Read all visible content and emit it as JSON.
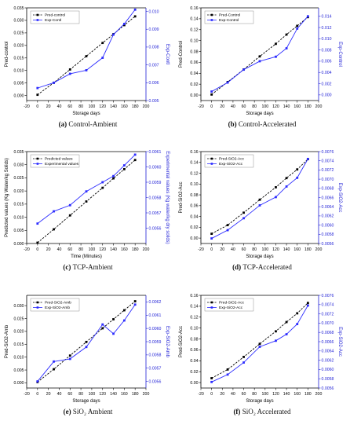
{
  "figure": {
    "captions": [
      [
        "(a) ",
        "Control-Ambient"
      ],
      [
        "(b) ",
        "Control-Accelerated"
      ],
      [
        "(c) ",
        "TCP-Ambient"
      ],
      [
        "(d) ",
        "TCP-Accelerated"
      ],
      [
        "(e) ",
        "SiO₂ Ambient"
      ],
      [
        "(f) ",
        "SiO₂ Accelerated"
      ]
    ]
  },
  "colors": {
    "pred": "#000000",
    "exp": "#2b2bff",
    "axis_right": "#1f1fd6"
  },
  "chart_data": [
    {
      "type": "line",
      "xlabel": "Storage days",
      "ylabel": "Pred-control",
      "y2label": "Exp-Contl",
      "xlim": [
        -20,
        200
      ],
      "xticks": [
        -20,
        0,
        20,
        40,
        60,
        80,
        100,
        120,
        140,
        160,
        180,
        200
      ],
      "ylim": [
        -0.002,
        0.035
      ],
      "yticks": [
        "0.000",
        "0.005",
        "0.010",
        "0.015",
        "0.020",
        "0.025",
        "0.030",
        "0.035"
      ],
      "y2lim": [
        0.005,
        0.0102
      ],
      "y2ticks": [
        "0.005",
        "0.006",
        "0.007",
        "0.008",
        "0.009",
        "0.010"
      ],
      "legend": [
        "Pred-control",
        "Exp-Contl"
      ],
      "legend_position": "top-left",
      "x": [
        0,
        30,
        60,
        90,
        120,
        140,
        160,
        180
      ],
      "series": [
        {
          "name": "Pred-control",
          "axis": "left",
          "marker": "square",
          "values": [
            0.0003,
            0.0051,
            0.0104,
            0.0157,
            0.021,
            0.0245,
            0.0281,
            0.0316
          ]
        },
        {
          "name": "Exp-Contl",
          "axis": "right",
          "marker": "square",
          "values": [
            0.0057,
            0.006,
            0.0065,
            0.0067,
            0.0074,
            0.0087,
            0.0093,
            0.0101
          ]
        }
      ]
    },
    {
      "type": "line",
      "xlabel": "Storage days",
      "ylabel": "Pred-Control",
      "y2label": "Exp-Control",
      "xlim": [
        -20,
        200
      ],
      "xticks": [
        -20,
        0,
        20,
        40,
        60,
        80,
        100,
        120,
        140,
        160,
        180,
        200
      ],
      "ylim": [
        -0.01,
        0.16
      ],
      "yticks": [
        "0.00",
        "0.02",
        "0.04",
        "0.06",
        "0.08",
        "0.10",
        "0.12",
        "0.14",
        "0.16"
      ],
      "y2lim": [
        -0.001,
        0.0155
      ],
      "y2ticks": [
        "0.000",
        "0.002",
        "0.004",
        "0.006",
        "0.008",
        "0.010",
        "0.012",
        "0.014"
      ],
      "legend": [
        "Pred-Control",
        "Exp-Control"
      ],
      "legend_position": "top-left",
      "x": [
        0,
        30,
        60,
        90,
        120,
        140,
        160,
        180
      ],
      "series": [
        {
          "name": "Pred-Control",
          "axis": "left",
          "marker": "square",
          "values": [
            0.001,
            0.024,
            0.047,
            0.071,
            0.094,
            0.111,
            0.127,
            0.143
          ]
        },
        {
          "name": "Exp-Control",
          "axis": "right",
          "marker": "square",
          "values": [
            0.0006,
            0.0022,
            0.0045,
            0.006,
            0.0068,
            0.0083,
            0.0118,
            0.014
          ]
        }
      ]
    },
    {
      "type": "line",
      "xlabel": "Time (Minutes)",
      "ylabel": "Predicted values (Kg Water/kg Solids)",
      "y2label": "Experimental values (Kg water/kg dry solids)",
      "xlim": [
        -20,
        200
      ],
      "xticks": [
        -20,
        0,
        20,
        40,
        60,
        80,
        100,
        120,
        140,
        160,
        180,
        200
      ],
      "ylim": [
        0.0,
        0.035
      ],
      "yticks": [
        "0.000",
        "0.005",
        "0.010",
        "0.015",
        "0.020",
        "0.025",
        "0.030",
        "0.035"
      ],
      "y2lim": [
        0.0055,
        0.0061
      ],
      "y2ticks": [
        "0.0056",
        "0.0057",
        "0.0058",
        "0.0059",
        "0.0060",
        "0.0061"
      ],
      "legend": [
        "Predicted values",
        "Experimental values"
      ],
      "legend_position": "top-left",
      "x": [
        0,
        30,
        60,
        90,
        120,
        140,
        160,
        180
      ],
      "series": [
        {
          "name": "Predicted values",
          "axis": "left",
          "marker": "square",
          "values": [
            0.0003,
            0.0054,
            0.0107,
            0.016,
            0.0212,
            0.0248,
            0.0283,
            0.0318
          ]
        },
        {
          "name": "Experimental values",
          "axis": "right",
          "marker": "square",
          "values": [
            0.00563,
            0.00571,
            0.00575,
            0.00584,
            0.0059,
            0.00594,
            0.00601,
            0.00608
          ]
        }
      ]
    },
    {
      "type": "line",
      "xlabel": "Storage days",
      "ylabel": "Pred-SiO2-Acc",
      "y2label": "Exp-SiO2-Acc",
      "xlim": [
        -20,
        200
      ],
      "xticks": [
        -20,
        0,
        20,
        40,
        60,
        80,
        100,
        120,
        140,
        160,
        180,
        200
      ],
      "ylim": [
        -0.01,
        0.16
      ],
      "yticks": [
        "0.00",
        "0.02",
        "0.04",
        "0.06",
        "0.08",
        "0.10",
        "0.12",
        "0.14",
        "0.16"
      ],
      "y2lim": [
        0.0056,
        0.0076
      ],
      "y2ticks": [
        "0.0056",
        "0.0058",
        "0.0060",
        "0.0062",
        "0.0064",
        "0.0066",
        "0.0068",
        "0.0070",
        "0.0072",
        "0.0074",
        "0.0076"
      ],
      "legend": [
        "Pred-SiO2-Acc",
        "Exp-SiO2-Acc"
      ],
      "legend_position": "top-left",
      "x": [
        0,
        30,
        60,
        90,
        120,
        140,
        160,
        180
      ],
      "series": [
        {
          "name": "Pred-SiO2-Acc",
          "axis": "left",
          "marker": "square",
          "values": [
            0.008,
            0.024,
            0.047,
            0.071,
            0.094,
            0.111,
            0.127,
            0.146
          ]
        },
        {
          "name": "Exp-SiO2-Acc",
          "axis": "right",
          "marker": "square",
          "values": [
            0.00571,
            0.00589,
            0.00615,
            0.00643,
            0.00661,
            0.00684,
            0.00703,
            0.00744
          ]
        }
      ]
    },
    {
      "type": "line",
      "xlabel": "Storage days",
      "ylabel": "Pred-SiO2-Amb",
      "y2label": "Exp-SiO2-Amb",
      "xlim": [
        -20,
        200
      ],
      "xticks": [
        -20,
        0,
        20,
        40,
        60,
        80,
        100,
        120,
        140,
        160,
        180,
        200
      ],
      "ylim": [
        -0.002,
        0.034
      ],
      "yticks": [
        "0.000",
        "0.005",
        "0.010",
        "0.015",
        "0.020",
        "0.025",
        "0.030"
      ],
      "y2lim": [
        0.00555,
        0.00625
      ],
      "y2ticks": [
        "0.0056",
        "0.0057",
        "0.0058",
        "0.0059",
        "0.0060",
        "0.0061",
        "0.0062"
      ],
      "legend": [
        "Pred-SiO2-Amb",
        "Exp-SiO2-Amb"
      ],
      "legend_position": "top-left",
      "x": [
        0,
        30,
        60,
        90,
        120,
        140,
        160,
        180
      ],
      "series": [
        {
          "name": "Pred-SiO2-Amb",
          "axis": "left",
          "marker": "square",
          "values": [
            0.0003,
            0.0053,
            0.0106,
            0.0159,
            0.0212,
            0.0247,
            0.0282,
            0.0317
          ]
        },
        {
          "name": "Exp-SiO2-Amb",
          "axis": "right",
          "marker": "square",
          "values": [
            0.0056,
            0.00575,
            0.00577,
            0.00586,
            0.00603,
            0.00596,
            0.00606,
            0.00618
          ]
        }
      ]
    },
    {
      "type": "line",
      "xlabel": "Storage days",
      "ylabel": "Pred-SiO2-Acc",
      "y2label": "Exp-SiO2-Acc",
      "xlim": [
        -20,
        200
      ],
      "xticks": [
        -20,
        0,
        20,
        40,
        60,
        80,
        100,
        120,
        140,
        160,
        180,
        200
      ],
      "ylim": [
        -0.01,
        0.16
      ],
      "yticks": [
        "0.00",
        "0.02",
        "0.04",
        "0.06",
        "0.08",
        "0.10",
        "0.12",
        "0.14",
        "0.16"
      ],
      "y2lim": [
        0.0056,
        0.0076
      ],
      "y2ticks": [
        "0.0056",
        "0.0058",
        "0.0060",
        "0.0062",
        "0.0064",
        "0.0066",
        "0.0068",
        "0.0070",
        "0.0072",
        "0.0074",
        "0.0076"
      ],
      "legend": [
        "Pred-SiO2-Acc",
        "Exp-SiO2-Acc"
      ],
      "legend_position": "top-left",
      "x": [
        0,
        30,
        60,
        90,
        120,
        140,
        160,
        180
      ],
      "series": [
        {
          "name": "Pred-SiO2-Acc",
          "axis": "left",
          "marker": "square",
          "values": [
            0.008,
            0.024,
            0.047,
            0.071,
            0.094,
            0.111,
            0.127,
            0.146
          ]
        },
        {
          "name": "Exp-SiO2-Acc",
          "axis": "right",
          "marker": "square",
          "values": [
            0.00573,
            0.00589,
            0.00615,
            0.00649,
            0.00662,
            0.00676,
            0.00698,
            0.00738
          ]
        }
      ]
    }
  ]
}
